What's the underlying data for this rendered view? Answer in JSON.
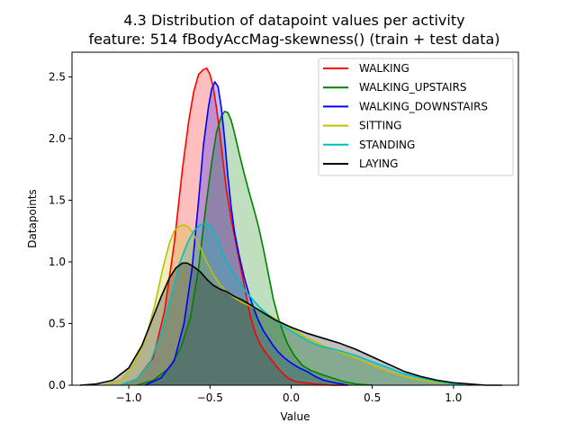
{
  "chart_data": {
    "type": "area",
    "title_line1": "4.3 Distribution of datapoint values per activity",
    "title_line2": "feature: 514 fBodyAccMag-skewness() (train + test data)",
    "xlabel": "Value",
    "ylabel": "Datapoints",
    "xlim": [
      -1.35,
      1.4
    ],
    "ylim": [
      0,
      2.7
    ],
    "xticks": [
      -1.0,
      -0.5,
      0.0,
      0.5,
      1.0
    ],
    "xtick_labels": [
      "−1.0",
      "−0.5",
      "0.0",
      "0.5",
      "1.0"
    ],
    "yticks": [
      0.0,
      0.5,
      1.0,
      1.5,
      2.0,
      2.5
    ],
    "ytick_labels": [
      "0.0",
      "0.5",
      "1.0",
      "1.5",
      "2.0",
      "2.5"
    ],
    "legend_position": "top-right",
    "grid": false,
    "series": [
      {
        "name": "WALKING",
        "color": "#ff0000",
        "x": [
          -1.05,
          -0.95,
          -0.85,
          -0.78,
          -0.72,
          -0.67,
          -0.63,
          -0.6,
          -0.57,
          -0.54,
          -0.52,
          -0.5,
          -0.48,
          -0.46,
          -0.44,
          -0.42,
          -0.4,
          -0.37,
          -0.34,
          -0.31,
          -0.28,
          -0.25,
          -0.22,
          -0.19,
          -0.16,
          -0.13,
          -0.1,
          -0.07,
          -0.04,
          -0.01,
          0.03,
          0.08,
          0.15,
          0.25,
          0.35
        ],
        "y": [
          0.0,
          0.05,
          0.22,
          0.6,
          1.15,
          1.75,
          2.15,
          2.38,
          2.52,
          2.56,
          2.57,
          2.52,
          2.42,
          2.25,
          2.05,
          1.82,
          1.6,
          1.35,
          1.15,
          0.95,
          0.75,
          0.55,
          0.42,
          0.33,
          0.27,
          0.22,
          0.17,
          0.12,
          0.08,
          0.05,
          0.03,
          0.02,
          0.01,
          0.0,
          0.0
        ]
      },
      {
        "name": "WALKING_UPSTAIRS",
        "color": "#008000",
        "x": [
          -0.95,
          -0.85,
          -0.75,
          -0.68,
          -0.62,
          -0.57,
          -0.53,
          -0.49,
          -0.46,
          -0.43,
          -0.41,
          -0.39,
          -0.37,
          -0.35,
          -0.32,
          -0.29,
          -0.26,
          -0.23,
          -0.2,
          -0.17,
          -0.14,
          -0.11,
          -0.08,
          -0.05,
          -0.02,
          0.02,
          0.07,
          0.12,
          0.18,
          0.25,
          0.32,
          0.4,
          0.5
        ],
        "y": [
          0.0,
          0.04,
          0.14,
          0.3,
          0.55,
          0.95,
          1.4,
          1.8,
          2.05,
          2.18,
          2.22,
          2.21,
          2.15,
          2.05,
          1.88,
          1.72,
          1.57,
          1.43,
          1.28,
          1.1,
          0.9,
          0.7,
          0.55,
          0.43,
          0.33,
          0.24,
          0.16,
          0.12,
          0.09,
          0.06,
          0.03,
          0.01,
          0.0
        ]
      },
      {
        "name": "WALKING_DOWNSTAIRS",
        "color": "#0000ff",
        "x": [
          -0.9,
          -0.8,
          -0.72,
          -0.66,
          -0.61,
          -0.57,
          -0.54,
          -0.51,
          -0.49,
          -0.47,
          -0.45,
          -0.43,
          -0.41,
          -0.39,
          -0.37,
          -0.35,
          -0.32,
          -0.29,
          -0.26,
          -0.23,
          -0.2,
          -0.17,
          -0.14,
          -0.11,
          -0.08,
          -0.04,
          0.0,
          0.05,
          0.1,
          0.15,
          0.2,
          0.27,
          0.35
        ],
        "y": [
          0.0,
          0.06,
          0.2,
          0.5,
          0.95,
          1.5,
          1.95,
          2.25,
          2.4,
          2.46,
          2.42,
          2.25,
          2.0,
          1.7,
          1.45,
          1.25,
          1.05,
          0.88,
          0.74,
          0.62,
          0.52,
          0.44,
          0.38,
          0.32,
          0.27,
          0.22,
          0.18,
          0.14,
          0.11,
          0.07,
          0.04,
          0.02,
          0.0
        ]
      },
      {
        "name": "SITTING",
        "color": "#bfbf00",
        "x": [
          -1.15,
          -1.05,
          -0.97,
          -0.9,
          -0.84,
          -0.79,
          -0.75,
          -0.72,
          -0.69,
          -0.66,
          -0.63,
          -0.6,
          -0.56,
          -0.52,
          -0.48,
          -0.44,
          -0.4,
          -0.35,
          -0.3,
          -0.25,
          -0.2,
          -0.15,
          -0.1,
          -0.05,
          0.0,
          0.05,
          0.1,
          0.15,
          0.2,
          0.3,
          0.4,
          0.5,
          0.6,
          0.7,
          0.8,
          0.9,
          1.0,
          1.1
        ],
        "y": [
          0.0,
          0.04,
          0.16,
          0.36,
          0.65,
          0.95,
          1.15,
          1.25,
          1.29,
          1.3,
          1.28,
          1.22,
          1.12,
          1.0,
          0.9,
          0.82,
          0.76,
          0.71,
          0.67,
          0.64,
          0.61,
          0.58,
          0.54,
          0.5,
          0.46,
          0.42,
          0.38,
          0.35,
          0.32,
          0.27,
          0.22,
          0.16,
          0.11,
          0.07,
          0.04,
          0.02,
          0.01,
          0.0
        ]
      },
      {
        "name": "STANDING",
        "color": "#00bfbf",
        "x": [
          -1.05,
          -0.95,
          -0.87,
          -0.8,
          -0.74,
          -0.69,
          -0.64,
          -0.6,
          -0.56,
          -0.52,
          -0.49,
          -0.46,
          -0.43,
          -0.4,
          -0.36,
          -0.32,
          -0.28,
          -0.24,
          -0.2,
          -0.15,
          -0.1,
          -0.05,
          0.0,
          0.05,
          0.1,
          0.15,
          0.2,
          0.3,
          0.4,
          0.5,
          0.6,
          0.7,
          0.8,
          0.9,
          1.0,
          1.1
        ],
        "y": [
          0.0,
          0.05,
          0.18,
          0.42,
          0.72,
          0.98,
          1.15,
          1.25,
          1.3,
          1.31,
          1.28,
          1.2,
          1.1,
          1.0,
          0.92,
          0.84,
          0.76,
          0.7,
          0.64,
          0.58,
          0.53,
          0.48,
          0.44,
          0.4,
          0.36,
          0.33,
          0.31,
          0.28,
          0.24,
          0.19,
          0.14,
          0.09,
          0.06,
          0.03,
          0.01,
          0.0
        ]
      },
      {
        "name": "LAYING",
        "color": "#000000",
        "x": [
          -1.3,
          -1.2,
          -1.1,
          -1.0,
          -0.92,
          -0.86,
          -0.8,
          -0.75,
          -0.71,
          -0.67,
          -0.64,
          -0.6,
          -0.56,
          -0.52,
          -0.48,
          -0.44,
          -0.4,
          -0.35,
          -0.3,
          -0.25,
          -0.2,
          -0.15,
          -0.1,
          -0.05,
          0.0,
          0.1,
          0.2,
          0.3,
          0.4,
          0.5,
          0.6,
          0.7,
          0.8,
          0.9,
          1.0,
          1.1,
          1.2,
          1.3
        ],
        "y": [
          0.0,
          0.01,
          0.04,
          0.14,
          0.32,
          0.52,
          0.72,
          0.87,
          0.95,
          0.99,
          0.99,
          0.96,
          0.92,
          0.86,
          0.81,
          0.78,
          0.76,
          0.72,
          0.69,
          0.65,
          0.61,
          0.57,
          0.53,
          0.5,
          0.47,
          0.42,
          0.38,
          0.34,
          0.29,
          0.23,
          0.17,
          0.11,
          0.07,
          0.04,
          0.02,
          0.01,
          0.0,
          0.0
        ]
      }
    ]
  }
}
